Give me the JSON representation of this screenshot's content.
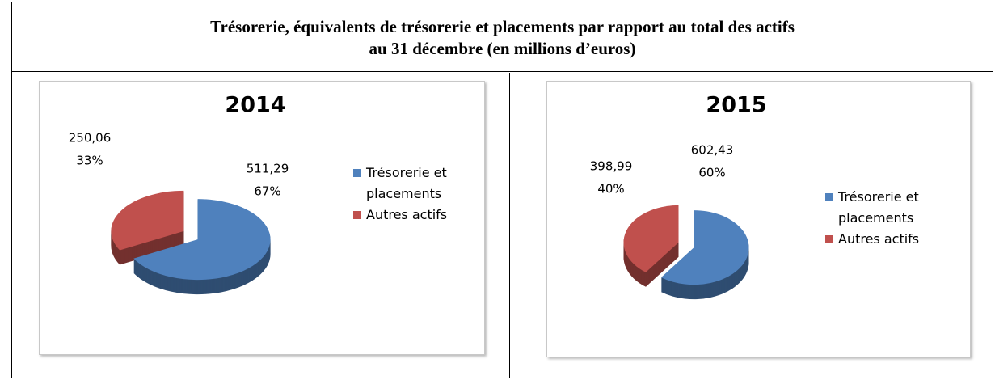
{
  "title_lines": [
    "Trésorerie, équivalents de trésorerie et placements par rapport au total des actifs",
    "au 31 décembre (en millions d’euros)"
  ],
  "chart_data": [
    {
      "type": "pie",
      "title": "2014",
      "categories": [
        "Trésorerie et placements",
        "Autres actifs"
      ],
      "colors": [
        "#4f81bd",
        "#c0504d"
      ],
      "values": [
        511.29,
        250.06
      ],
      "value_labels": [
        "511,29",
        "250,06"
      ],
      "percentages": [
        67,
        33
      ],
      "percentage_labels": [
        "67%",
        "33%"
      ]
    },
    {
      "type": "pie",
      "title": "2015",
      "categories": [
        "Trésorerie et placements",
        "Autres actifs"
      ],
      "colors": [
        "#4f81bd",
        "#c0504d"
      ],
      "values": [
        602.43,
        398.99
      ],
      "value_labels": [
        "602,43",
        "398,99"
      ],
      "percentages": [
        60,
        40
      ],
      "percentage_labels": [
        "60%",
        "40%"
      ]
    }
  ]
}
